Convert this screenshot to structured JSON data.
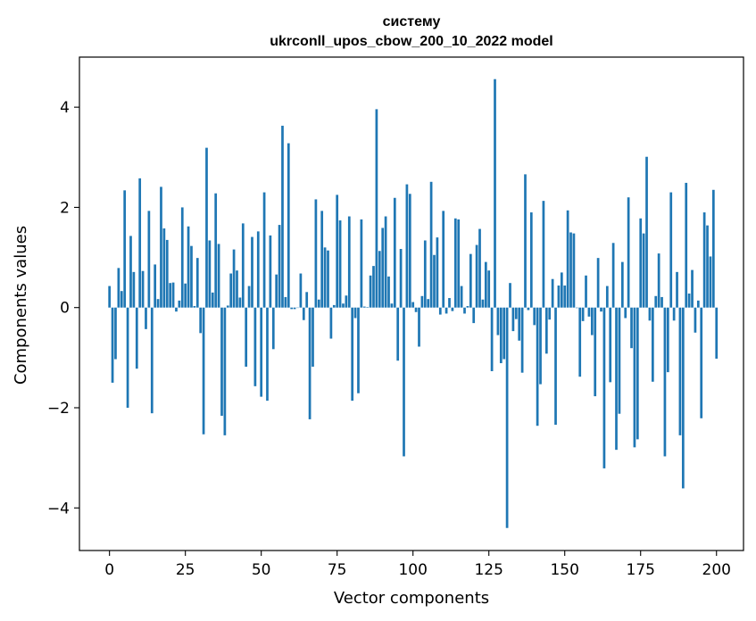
{
  "chart_data": {
    "type": "bar",
    "title_line1": "систему",
    "title_line2": "ukrconll_upos_cbow_200_10_2022 model",
    "xlabel": "Vector components",
    "ylabel": "Components values",
    "xlim": [
      -9.9,
      208.9
    ],
    "ylim": [
      -4.85,
      5.0
    ],
    "xticks": [
      0,
      25,
      50,
      75,
      100,
      125,
      150,
      175,
      200
    ],
    "yticks": [
      -4,
      -2,
      0,
      2,
      4
    ],
    "ytick_labels": [
      "−4",
      "−2",
      "0",
      "2",
      "4"
    ],
    "bar_color": "#1f77b4",
    "grid": false,
    "values": [
      0.43,
      -1.5,
      -1.03,
      0.79,
      0.33,
      2.34,
      -2.0,
      1.43,
      0.71,
      -1.22,
      2.58,
      0.73,
      -0.43,
      1.93,
      -2.11,
      0.86,
      0.17,
      2.41,
      1.58,
      1.35,
      0.49,
      0.5,
      -0.08,
      0.14,
      2.0,
      0.48,
      1.62,
      1.23,
      0.03,
      0.99,
      -0.51,
      -2.53,
      3.19,
      1.34,
      0.3,
      2.28,
      1.27,
      -2.16,
      -2.55,
      0.04,
      0.68,
      1.16,
      0.74,
      0.2,
      1.68,
      -1.18,
      0.43,
      1.41,
      -1.57,
      1.52,
      -1.78,
      2.3,
      -1.86,
      1.44,
      -0.83,
      0.66,
      1.65,
      3.63,
      0.21,
      3.28,
      -0.03,
      -0.03,
      0.0,
      0.68,
      -0.25,
      0.31,
      -2.23,
      -1.18,
      2.16,
      0.16,
      1.93,
      1.2,
      1.14,
      -0.62,
      0.05,
      2.25,
      1.74,
      0.08,
      0.24,
      1.82,
      -1.86,
      -0.21,
      -1.71,
      1.76,
      0.02,
      0.01,
      0.64,
      0.83,
      3.96,
      1.13,
      1.59,
      1.82,
      0.62,
      0.08,
      2.19,
      -1.06,
      1.17,
      -2.97,
      2.46,
      2.27,
      0.11,
      -0.09,
      -0.78,
      0.23,
      1.34,
      0.17,
      2.51,
      1.05,
      1.4,
      -0.14,
      1.93,
      -0.12,
      0.19,
      -0.07,
      1.78,
      1.76,
      0.43,
      -0.12,
      0.03,
      1.07,
      -0.31,
      1.25,
      1.57,
      0.16,
      0.91,
      0.74,
      -1.27,
      4.56,
      -0.55,
      -1.11,
      -1.03,
      -4.4,
      0.49,
      -0.47,
      -0.23,
      -0.66,
      -1.3,
      2.66,
      -0.05,
      1.9,
      -0.35,
      -2.36,
      -1.53,
      2.13,
      -0.92,
      -0.24,
      0.57,
      -2.34,
      0.44,
      0.7,
      0.44,
      1.94,
      1.5,
      1.48,
      -0.01,
      -1.38,
      -0.27,
      0.64,
      -0.18,
      -0.55,
      -1.77,
      0.99,
      -0.08,
      -3.21,
      0.43,
      -1.49,
      1.29,
      -2.84,
      -2.12,
      0.91,
      -0.21,
      2.2,
      -0.81,
      -2.79,
      -2.63,
      1.78,
      1.48,
      3.01,
      -0.26,
      -1.48,
      0.23,
      1.08,
      0.21,
      -2.97,
      -1.29,
      2.3,
      -0.26,
      0.71,
      -2.55,
      -3.61,
      2.49,
      0.28,
      0.75,
      -0.5,
      0.14,
      -2.21,
      1.9,
      1.64,
      1.02,
      2.35,
      -1.02
    ]
  }
}
